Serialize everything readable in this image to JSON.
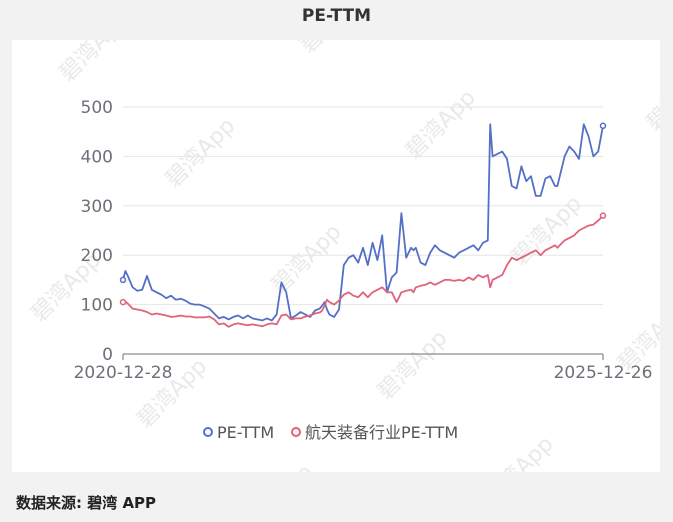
{
  "footer": {
    "source": "数据来源: 碧湾 APP"
  },
  "colors": {
    "pe_ttm": "#5470c6",
    "industry": "#e0637a",
    "grid": "#e6e6e6",
    "axis": "#6e7079"
  },
  "chart_data": {
    "type": "line",
    "title": "PE-TTM",
    "x_labels": [
      "2020-12-28",
      "2025-12-26"
    ],
    "ylim": [
      0,
      500
    ],
    "yticks": [
      0,
      100,
      200,
      300,
      400,
      500
    ],
    "grid": true,
    "legend": "bottom",
    "x": [
      0,
      0.005,
      0.01,
      0.02,
      0.03,
      0.04,
      0.05,
      0.06,
      0.07,
      0.08,
      0.09,
      0.1,
      0.11,
      0.12,
      0.13,
      0.14,
      0.15,
      0.16,
      0.17,
      0.18,
      0.19,
      0.2,
      0.21,
      0.22,
      0.23,
      0.24,
      0.25,
      0.26,
      0.27,
      0.28,
      0.29,
      0.3,
      0.31,
      0.32,
      0.33,
      0.34,
      0.35,
      0.36,
      0.37,
      0.38,
      0.39,
      0.4,
      0.41,
      0.415,
      0.42,
      0.425,
      0.43,
      0.44,
      0.45,
      0.46,
      0.47,
      0.48,
      0.49,
      0.5,
      0.51,
      0.52,
      0.53,
      0.54,
      0.55,
      0.56,
      0.57,
      0.58,
      0.59,
      0.6,
      0.605,
      0.61,
      0.62,
      0.63,
      0.64,
      0.65,
      0.66,
      0.67,
      0.68,
      0.69,
      0.7,
      0.71,
      0.72,
      0.73,
      0.74,
      0.75,
      0.76,
      0.765,
      0.77,
      0.78,
      0.79,
      0.8,
      0.81,
      0.82,
      0.83,
      0.84,
      0.85,
      0.86,
      0.87,
      0.88,
      0.89,
      0.9,
      0.905,
      0.91,
      0.92,
      0.93,
      0.94,
      0.95,
      0.96,
      0.97,
      0.98,
      0.99,
      1.0
    ],
    "series": [
      {
        "name": "PE-TTM",
        "values": [
          150,
          168,
          158,
          135,
          128,
          130,
          158,
          130,
          125,
          120,
          113,
          118,
          110,
          112,
          108,
          102,
          100,
          100,
          96,
          92,
          82,
          72,
          75,
          70,
          75,
          78,
          72,
          78,
          72,
          70,
          68,
          72,
          68,
          80,
          145,
          125,
          72,
          78,
          85,
          80,
          75,
          88,
          92,
          98,
          105,
          90,
          80,
          75,
          90,
          180,
          195,
          200,
          185,
          215,
          180,
          225,
          190,
          240,
          125,
          155,
          165,
          285,
          195,
          215,
          210,
          215,
          185,
          180,
          205,
          220,
          210,
          205,
          200,
          195,
          205,
          210,
          215,
          220,
          210,
          225,
          230,
          465,
          400,
          405,
          410,
          395,
          340,
          335,
          380,
          350,
          360,
          320,
          320,
          355,
          360,
          340,
          340,
          360,
          400,
          420,
          410,
          395,
          465,
          440,
          400,
          410,
          462
        ]
      },
      {
        "name": "航天装备行业PE-TTM",
        "values": [
          105,
          106,
          102,
          92,
          90,
          88,
          85,
          80,
          82,
          80,
          78,
          75,
          76,
          78,
          76,
          76,
          74,
          74,
          74,
          76,
          70,
          60,
          62,
          55,
          60,
          62,
          60,
          58,
          60,
          58,
          56,
          60,
          62,
          60,
          78,
          80,
          70,
          72,
          72,
          76,
          78,
          82,
          84,
          88,
          98,
          110,
          105,
          100,
          108,
          120,
          125,
          118,
          115,
          125,
          115,
          125,
          130,
          135,
          125,
          125,
          105,
          125,
          128,
          130,
          125,
          135,
          138,
          140,
          145,
          140,
          145,
          150,
          150,
          148,
          150,
          148,
          155,
          150,
          160,
          155,
          160,
          135,
          150,
          155,
          160,
          180,
          195,
          190,
          195,
          200,
          205,
          210,
          200,
          210,
          215,
          220,
          215,
          220,
          230,
          235,
          240,
          250,
          255,
          260,
          262,
          270,
          280
        ]
      }
    ]
  }
}
